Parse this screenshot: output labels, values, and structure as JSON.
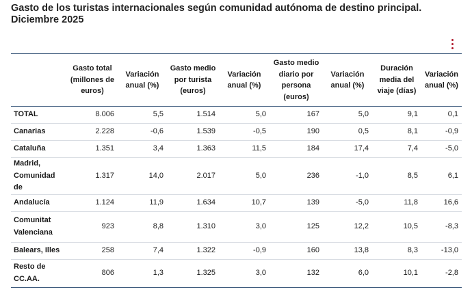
{
  "title": "Gasto de los turistas internacionales según comunidad autónoma de destino principal. Diciembre 2025",
  "menu_icon": "kebab-menu-icon",
  "accent_color": "#b01c2e",
  "rule_color": "#3f5c7e",
  "headers": [
    "",
    "Gasto total (millones de euros)",
    "Variación anual (%)",
    "Gasto medio por turista (euros)",
    "Variación anual (%)",
    "Gasto medio diario por persona (euros)",
    "Variación anual (%)",
    "Duración media del viaje (días)",
    "Variación anual (%)"
  ],
  "rows": [
    [
      "TOTAL",
      "8.006",
      "5,5",
      "1.514",
      "5,0",
      "167",
      "5,0",
      "9,1",
      "0,1"
    ],
    [
      "Canarias",
      "2.228",
      "-0,6",
      "1.539",
      "-0,5",
      "190",
      "0,5",
      "8,1",
      "-0,9"
    ],
    [
      "Cataluña",
      "1.351",
      "3,4",
      "1.363",
      "11,5",
      "184",
      "17,4",
      "7,4",
      "-5,0"
    ],
    [
      "Madrid, Comunidad de",
      "1.317",
      "14,0",
      "2.017",
      "5,0",
      "236",
      "-1,0",
      "8,5",
      "6,1"
    ],
    [
      "Andalucía",
      "1.124",
      "11,9",
      "1.634",
      "10,7",
      "139",
      "-5,0",
      "11,8",
      "16,6"
    ],
    [
      "Comunitat Valenciana",
      "923",
      "8,8",
      "1.310",
      "3,0",
      "125",
      "12,2",
      "10,5",
      "-8,3"
    ],
    [
      "Balears, Illes",
      "258",
      "7,4",
      "1.322",
      "-0,9",
      "160",
      "13,8",
      "8,3",
      "-13,0"
    ],
    [
      "Resto de CC.AA.",
      "806",
      "1,3",
      "1.325",
      "3,0",
      "132",
      "6,0",
      "10,1",
      "-2,8"
    ]
  ]
}
